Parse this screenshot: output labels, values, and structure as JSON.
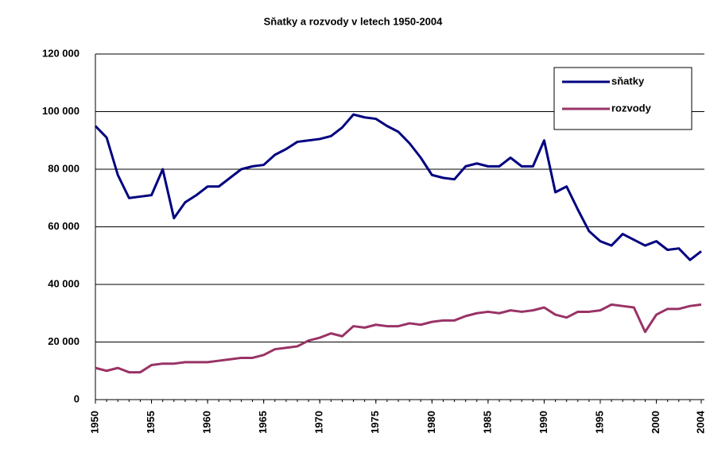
{
  "chart_data": {
    "type": "line",
    "title": "Sňatky a rozvody v letech 1950-2004",
    "x": [
      1950,
      1951,
      1952,
      1953,
      1954,
      1955,
      1956,
      1957,
      1958,
      1959,
      1960,
      1961,
      1962,
      1963,
      1964,
      1965,
      1966,
      1967,
      1968,
      1969,
      1970,
      1971,
      1972,
      1973,
      1974,
      1975,
      1976,
      1977,
      1978,
      1979,
      1980,
      1981,
      1982,
      1983,
      1984,
      1985,
      1986,
      1987,
      1988,
      1989,
      1990,
      1991,
      1992,
      1993,
      1994,
      1995,
      1996,
      1997,
      1998,
      1999,
      2000,
      2001,
      2002,
      2003,
      2004
    ],
    "series": [
      {
        "name": "sňatky",
        "color": "#000080",
        "values": [
          95000,
          91000,
          78000,
          70000,
          70500,
          71000,
          80000,
          63000,
          68500,
          71000,
          74000,
          74000,
          77000,
          80000,
          81000,
          81500,
          85000,
          87000,
          89500,
          90000,
          90500,
          91500,
          94500,
          99000,
          98000,
          97500,
          95000,
          93000,
          89000,
          84000,
          78000,
          77000,
          76500,
          81000,
          82000,
          81000,
          81000,
          84000,
          81000,
          81000,
          90000,
          72000,
          74000,
          66000,
          58500,
          55000,
          53500,
          57500,
          55500,
          53500,
          55000,
          52000,
          52500,
          48500,
          51500
        ]
      },
      {
        "name": "rozvody",
        "color": "#993366",
        "values": [
          11000,
          10000,
          11000,
          9500,
          9500,
          12000,
          12500,
          12500,
          13000,
          13000,
          13000,
          13500,
          14000,
          14500,
          14500,
          15500,
          17500,
          18000,
          18500,
          20500,
          21500,
          23000,
          22000,
          25500,
          25000,
          26000,
          25500,
          25500,
          26500,
          26000,
          27000,
          27500,
          27500,
          29000,
          30000,
          30500,
          30000,
          31000,
          30500,
          31000,
          32000,
          29500,
          28500,
          30500,
          30500,
          31000,
          33000,
          32500,
          32000,
          23500,
          29500,
          31500,
          31500,
          32500,
          33000
        ]
      }
    ],
    "xlim": [
      1950,
      2004
    ],
    "xticks": [
      1950,
      1955,
      1960,
      1965,
      1970,
      1975,
      1980,
      1985,
      1990,
      1995,
      2000,
      2004
    ],
    "ylim": [
      0,
      120000
    ],
    "yticks": [
      {
        "value": 0,
        "label": "0"
      },
      {
        "value": 20000,
        "label": "20 000"
      },
      {
        "value": 40000,
        "label": "40 000"
      },
      {
        "value": 60000,
        "label": "60 000"
      },
      {
        "value": 80000,
        "label": "80 000"
      },
      {
        "value": 100000,
        "label": "100 000"
      },
      {
        "value": 120000,
        "label": "120 000"
      }
    ],
    "grid": true,
    "legend": "top-right"
  }
}
